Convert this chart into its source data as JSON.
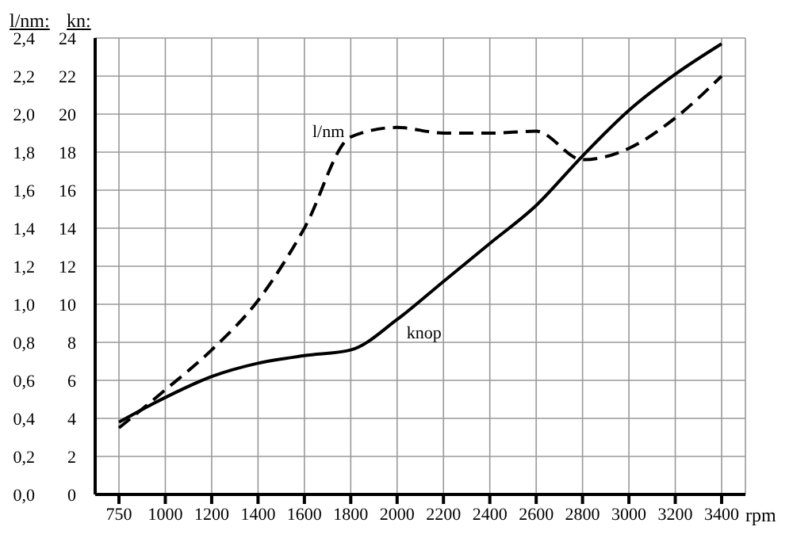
{
  "chart_data": {
    "type": "line",
    "xlabel": "rpm",
    "ylabel": "l/nm:",
    "y2label": "kn:",
    "categories": [
      "750",
      "1000",
      "1200",
      "1400",
      "1600",
      "1800",
      "2000",
      "2200",
      "2400",
      "2600",
      "2800",
      "3000",
      "3200",
      "3400"
    ],
    "series": [
      {
        "name": "l/nm",
        "color": "#000000",
        "line_style": "dashed",
        "values": [
          0.35,
          0.55,
          0.76,
          1.02,
          1.4,
          1.88,
          1.93,
          1.9,
          1.9,
          1.91,
          1.76,
          1.82,
          1.98,
          2.2
        ]
      },
      {
        "name": "knop",
        "color": "#000000",
        "line_style": "solid",
        "axis": "y2",
        "values": [
          3.8,
          5.1,
          6.2,
          6.9,
          7.3,
          7.6,
          9.2,
          11.2,
          13.2,
          15.2,
          17.8,
          20.2,
          22.1,
          23.7
        ]
      }
    ],
    "ylim": [
      0,
      2.4
    ],
    "yticks": [
      {
        "value": 0,
        "label": "0,0"
      },
      {
        "value": 0.2,
        "label": "0,2"
      },
      {
        "value": 0.4,
        "label": "0,4"
      },
      {
        "value": 0.6,
        "label": "0,6"
      },
      {
        "value": 0.8,
        "label": "0,8"
      },
      {
        "value": 1,
        "label": "1,0"
      },
      {
        "value": 1.2,
        "label": "1,2"
      },
      {
        "value": 1.4,
        "label": "1,4"
      },
      {
        "value": 1.6,
        "label": "1,6"
      },
      {
        "value": 1.8,
        "label": "1,8"
      },
      {
        "value": 2,
        "label": "2,0"
      },
      {
        "value": 2.2,
        "label": "2,2"
      },
      {
        "value": 2.4,
        "label": "2,4"
      }
    ],
    "y2lim": [
      0,
      24
    ],
    "y2ticks": [
      0,
      2,
      4,
      6,
      8,
      10,
      12,
      14,
      16,
      18,
      20,
      22,
      24
    ],
    "grid": true,
    "marker": "none"
  }
}
